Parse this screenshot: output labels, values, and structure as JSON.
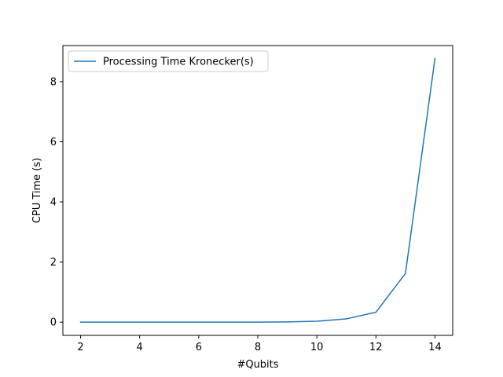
{
  "chart_data": {
    "type": "line",
    "title": "",
    "xlabel": "#Qubits",
    "ylabel": "CPU Time (s)",
    "xlim": [
      1.4,
      14.6
    ],
    "ylim": [
      -0.44,
      9.2
    ],
    "xticks": [
      2,
      4,
      6,
      8,
      10,
      12,
      14
    ],
    "yticks": [
      0,
      2,
      4,
      6,
      8
    ],
    "grid": false,
    "legend_position": "upper-left",
    "series": [
      {
        "name": "Processing Time Kronecker(s)",
        "color": "#1f77b4",
        "x": [
          2,
          3,
          4,
          5,
          6,
          7,
          8,
          9,
          10,
          11,
          12,
          13,
          14
        ],
        "y": [
          0.0,
          0.0,
          0.0,
          0.0,
          0.0,
          0.0,
          0.002,
          0.008,
          0.03,
          0.11,
          0.33,
          1.62,
          8.77
        ]
      }
    ]
  }
}
